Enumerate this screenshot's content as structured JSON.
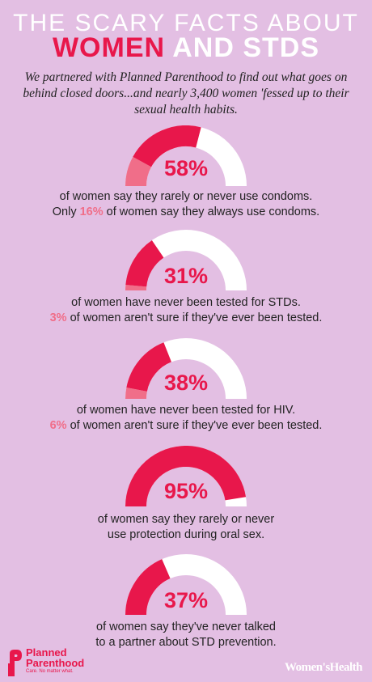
{
  "header": {
    "title_line1": "THE SCARY FACTS ABOUT",
    "title_women": "WOMEN",
    "title_and_stds": " AND STDS",
    "intro": "We partnered with Planned Parenthood to find out what goes on behind closed doors...and nearly 3,400 women 'fessed up to their sexual health habits."
  },
  "colors": {
    "background": "#e3bfe3",
    "accent": "#e8174b",
    "accent_light": "#f06e89",
    "gauge_empty": "#ffffff"
  },
  "stats": [
    {
      "percent": "58%",
      "value": 58,
      "secondary": 16,
      "line1": "of women say they rarely or never use condoms.",
      "line2_prefix": "Only ",
      "line2_hl": "16%",
      "line2_suffix": " of women say they always use condoms."
    },
    {
      "percent": "31%",
      "value": 31,
      "secondary": 3,
      "line1": "of women have never been tested for STDs.",
      "line2_prefix": "",
      "line2_hl": "3%",
      "line2_suffix": " of women aren't sure if they've ever been tested."
    },
    {
      "percent": "38%",
      "value": 38,
      "secondary": 6,
      "line1": "of women have never been tested for HIV.",
      "line2_prefix": "",
      "line2_hl": "6%",
      "line2_suffix": " of women aren't sure if they've ever been tested."
    },
    {
      "percent": "95%",
      "value": 95,
      "secondary": 0,
      "line1": "of women say they rarely or never",
      "line2": "use protection during oral sex."
    },
    {
      "percent": "37%",
      "value": 37,
      "secondary": 0,
      "line1": "of women say they've never talked",
      "line2": "to a partner about STD prevention."
    }
  ],
  "footer": {
    "pp_name_line1": "Planned",
    "pp_name_line2": "Parenthood",
    "pp_tagline": "Care. No matter what.",
    "wh_logo": "Women'sHealth"
  }
}
